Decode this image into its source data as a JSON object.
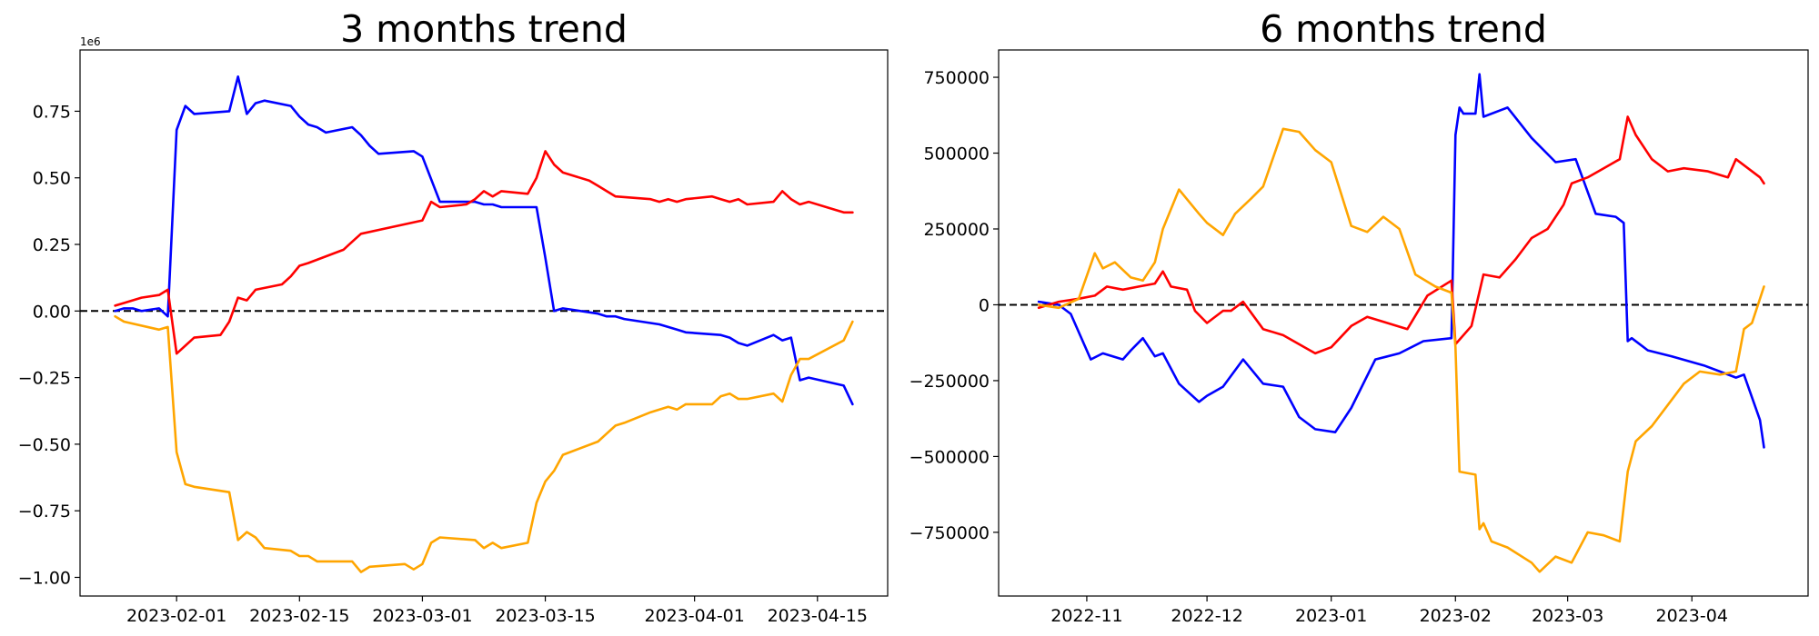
{
  "chart_data": [
    {
      "type": "line",
      "title": "3 months trend",
      "xlabel": "",
      "ylabel": "",
      "y_offset_label": "1e6",
      "xlim": [
        "2023-01-21",
        "2023-04-23"
      ],
      "ylim": [
        -1.07,
        0.98
      ],
      "x_tick_labels": [
        "2023-02-01",
        "2023-02-15",
        "2023-03-01",
        "2023-03-15",
        "2023-04-01",
        "2023-04-15"
      ],
      "y_ticks": [
        0.75,
        0.5,
        0.25,
        0.0,
        -0.25,
        -0.5,
        -0.75,
        -1.0
      ],
      "y_tick_labels": [
        "0.75",
        "0.50",
        "0.25",
        "0.00",
        "−0.25",
        "−0.50",
        "−0.75",
        "−1.00"
      ],
      "zero_line": true,
      "legend": "none",
      "grid": false,
      "series": [
        {
          "color": "#0000ff",
          "x": [
            "2023-01-25",
            "2023-01-26",
            "2023-01-27",
            "2023-01-28",
            "2023-01-30",
            "2023-01-31",
            "2023-02-01",
            "2023-02-02",
            "2023-02-03",
            "2023-02-07",
            "2023-02-08",
            "2023-02-09",
            "2023-02-10",
            "2023-02-11",
            "2023-02-14",
            "2023-02-15",
            "2023-02-16",
            "2023-02-17",
            "2023-02-18",
            "2023-02-21",
            "2023-02-22",
            "2023-02-23",
            "2023-02-24",
            "2023-02-28",
            "2023-03-01",
            "2023-03-03",
            "2023-03-07",
            "2023-03-08",
            "2023-03-09",
            "2023-03-10",
            "2023-03-14",
            "2023-03-15",
            "2023-03-16",
            "2023-03-17",
            "2023-03-21",
            "2023-03-22",
            "2023-03-23",
            "2023-03-24",
            "2023-03-28",
            "2023-03-29",
            "2023-03-30",
            "2023-03-31",
            "2023-04-04",
            "2023-04-05",
            "2023-04-06",
            "2023-04-07",
            "2023-04-10",
            "2023-04-11",
            "2023-04-12",
            "2023-04-13",
            "2023-04-14",
            "2023-04-18",
            "2023-04-19"
          ],
          "values": [
            0.0,
            0.01,
            0.01,
            0.0,
            0.01,
            -0.02,
            0.68,
            0.77,
            0.74,
            0.75,
            0.88,
            0.74,
            0.78,
            0.79,
            0.77,
            0.73,
            0.7,
            0.69,
            0.67,
            0.69,
            0.66,
            0.62,
            0.59,
            0.6,
            0.58,
            0.41,
            0.41,
            0.4,
            0.4,
            0.39,
            0.39,
            0.2,
            0.0,
            0.01,
            -0.01,
            -0.02,
            -0.02,
            -0.03,
            -0.05,
            -0.06,
            -0.07,
            -0.08,
            -0.09,
            -0.1,
            -0.12,
            -0.13,
            -0.09,
            -0.11,
            -0.1,
            -0.26,
            -0.25,
            -0.28,
            -0.35
          ]
        },
        {
          "color": "#ff0000",
          "x": [
            "2023-01-25",
            "2023-01-26",
            "2023-01-28",
            "2023-01-30",
            "2023-01-31",
            "2023-02-01",
            "2023-02-03",
            "2023-02-06",
            "2023-02-07",
            "2023-02-08",
            "2023-02-09",
            "2023-02-10",
            "2023-02-13",
            "2023-02-14",
            "2023-02-15",
            "2023-02-16",
            "2023-02-20",
            "2023-02-21",
            "2023-02-22",
            "2023-03-01",
            "2023-03-02",
            "2023-03-03",
            "2023-03-06",
            "2023-03-07",
            "2023-03-08",
            "2023-03-09",
            "2023-03-10",
            "2023-03-13",
            "2023-03-14",
            "2023-03-15",
            "2023-03-16",
            "2023-03-17",
            "2023-03-20",
            "2023-03-21",
            "2023-03-22",
            "2023-03-23",
            "2023-03-27",
            "2023-03-28",
            "2023-03-29",
            "2023-03-30",
            "2023-03-31",
            "2023-04-03",
            "2023-04-04",
            "2023-04-05",
            "2023-04-06",
            "2023-04-07",
            "2023-04-10",
            "2023-04-11",
            "2023-04-12",
            "2023-04-13",
            "2023-04-14",
            "2023-04-17",
            "2023-04-18",
            "2023-04-19"
          ],
          "values": [
            0.02,
            0.03,
            0.05,
            0.06,
            0.08,
            -0.16,
            -0.1,
            -0.09,
            -0.04,
            0.05,
            0.04,
            0.08,
            0.1,
            0.13,
            0.17,
            0.18,
            0.23,
            0.26,
            0.29,
            0.34,
            0.41,
            0.39,
            0.4,
            0.42,
            0.45,
            0.43,
            0.45,
            0.44,
            0.5,
            0.6,
            0.55,
            0.52,
            0.49,
            0.47,
            0.45,
            0.43,
            0.42,
            0.41,
            0.42,
            0.41,
            0.42,
            0.43,
            0.42,
            0.41,
            0.42,
            0.4,
            0.41,
            0.45,
            0.42,
            0.4,
            0.41,
            0.38,
            0.37,
            0.37
          ]
        },
        {
          "color": "#ffa500",
          "x": [
            "2023-01-25",
            "2023-01-26",
            "2023-01-30",
            "2023-01-31",
            "2023-02-01",
            "2023-02-02",
            "2023-02-03",
            "2023-02-07",
            "2023-02-08",
            "2023-02-09",
            "2023-02-10",
            "2023-02-11",
            "2023-02-14",
            "2023-02-15",
            "2023-02-16",
            "2023-02-17",
            "2023-02-18",
            "2023-02-21",
            "2023-02-22",
            "2023-02-23",
            "2023-02-27",
            "2023-02-28",
            "2023-03-01",
            "2023-03-02",
            "2023-03-03",
            "2023-03-07",
            "2023-03-08",
            "2023-03-09",
            "2023-03-10",
            "2023-03-13",
            "2023-03-14",
            "2023-03-15",
            "2023-03-16",
            "2023-03-17",
            "2023-03-21",
            "2023-03-22",
            "2023-03-23",
            "2023-03-24",
            "2023-03-27",
            "2023-03-28",
            "2023-03-29",
            "2023-03-30",
            "2023-03-31",
            "2023-04-03",
            "2023-04-04",
            "2023-04-05",
            "2023-04-06",
            "2023-04-07",
            "2023-04-10",
            "2023-04-11",
            "2023-04-12",
            "2023-04-13",
            "2023-04-14",
            "2023-04-18",
            "2023-04-19"
          ],
          "values": [
            -0.02,
            -0.04,
            -0.07,
            -0.06,
            -0.53,
            -0.65,
            -0.66,
            -0.68,
            -0.86,
            -0.83,
            -0.85,
            -0.89,
            -0.9,
            -0.92,
            -0.92,
            -0.94,
            -0.94,
            -0.94,
            -0.98,
            -0.96,
            -0.95,
            -0.97,
            -0.95,
            -0.87,
            -0.85,
            -0.86,
            -0.89,
            -0.87,
            -0.89,
            -0.87,
            -0.72,
            -0.64,
            -0.6,
            -0.54,
            -0.49,
            -0.46,
            -0.43,
            -0.42,
            -0.38,
            -0.37,
            -0.36,
            -0.37,
            -0.35,
            -0.35,
            -0.32,
            -0.31,
            -0.33,
            -0.33,
            -0.31,
            -0.34,
            -0.24,
            -0.18,
            -0.18,
            -0.11,
            -0.04
          ]
        }
      ]
    },
    {
      "type": "line",
      "title": "6 months trend",
      "xlabel": "",
      "ylabel": "",
      "xlim": [
        "2022-10-10",
        "2023-04-30"
      ],
      "ylim": [
        -960000,
        840000
      ],
      "x_tick_labels": [
        "2022-11",
        "2022-12",
        "2023-01",
        "2023-02",
        "2023-03",
        "2023-04"
      ],
      "y_ticks": [
        750000,
        500000,
        250000,
        0,
        -250000,
        -500000,
        -750000
      ],
      "y_tick_labels": [
        "750000",
        "500000",
        "250000",
        "0",
        "−250000",
        "−500000",
        "−750000"
      ],
      "zero_line": true,
      "legend": "none",
      "grid": false,
      "series": [
        {
          "color": "#0000ff",
          "x": [
            "2022-10-20",
            "2022-10-25",
            "2022-10-28",
            "2022-11-02",
            "2022-11-05",
            "2022-11-10",
            "2022-11-12",
            "2022-11-15",
            "2022-11-18",
            "2022-11-20",
            "2022-11-24",
            "2022-11-29",
            "2022-12-01",
            "2022-12-05",
            "2022-12-10",
            "2022-12-15",
            "2022-12-20",
            "2022-12-24",
            "2022-12-28",
            "2023-01-02",
            "2023-01-06",
            "2023-01-12",
            "2023-01-18",
            "2023-01-24",
            "2023-01-31",
            "2023-02-01",
            "2023-02-02",
            "2023-02-03",
            "2023-02-06",
            "2023-02-07",
            "2023-02-08",
            "2023-02-14",
            "2023-02-20",
            "2023-02-26",
            "2023-03-03",
            "2023-03-08",
            "2023-03-13",
            "2023-03-15",
            "2023-03-16",
            "2023-03-17",
            "2023-03-21",
            "2023-03-27",
            "2023-04-04",
            "2023-04-08",
            "2023-04-12",
            "2023-04-14",
            "2023-04-18",
            "2023-04-19"
          ],
          "values": [
            10000,
            0,
            -30000,
            -180000,
            -160000,
            -180000,
            -150000,
            -110000,
            -170000,
            -160000,
            -260000,
            -320000,
            -300000,
            -270000,
            -180000,
            -260000,
            -270000,
            -370000,
            -410000,
            -420000,
            -340000,
            -180000,
            -160000,
            -120000,
            -110000,
            560000,
            650000,
            630000,
            630000,
            760000,
            620000,
            650000,
            550000,
            470000,
            480000,
            300000,
            290000,
            270000,
            -120000,
            -110000,
            -150000,
            -170000,
            -200000,
            -220000,
            -240000,
            -230000,
            -380000,
            -470000
          ]
        },
        {
          "color": "#ff0000",
          "x": [
            "2022-10-20",
            "2022-10-25",
            "2022-10-30",
            "2022-11-03",
            "2022-11-06",
            "2022-11-10",
            "2022-11-14",
            "2022-11-18",
            "2022-11-20",
            "2022-11-22",
            "2022-11-26",
            "2022-11-28",
            "2022-12-01",
            "2022-12-05",
            "2022-12-07",
            "2022-12-10",
            "2022-12-15",
            "2022-12-20",
            "2022-12-24",
            "2022-12-28",
            "2023-01-01",
            "2023-01-06",
            "2023-01-10",
            "2023-01-15",
            "2023-01-20",
            "2023-01-25",
            "2023-01-31",
            "2023-02-01",
            "2023-02-05",
            "2023-02-08",
            "2023-02-12",
            "2023-02-16",
            "2023-02-20",
            "2023-02-24",
            "2023-02-28",
            "2023-03-02",
            "2023-03-06",
            "2023-03-10",
            "2023-03-14",
            "2023-03-16",
            "2023-03-18",
            "2023-03-22",
            "2023-03-26",
            "2023-03-30",
            "2023-04-05",
            "2023-04-10",
            "2023-04-12",
            "2023-04-18",
            "2023-04-19"
          ],
          "values": [
            -10000,
            10000,
            20000,
            30000,
            60000,
            50000,
            60000,
            70000,
            110000,
            60000,
            50000,
            -20000,
            -60000,
            -20000,
            -20000,
            10000,
            -80000,
            -100000,
            -130000,
            -160000,
            -140000,
            -70000,
            -40000,
            -60000,
            -80000,
            30000,
            80000,
            -130000,
            -70000,
            100000,
            90000,
            150000,
            220000,
            250000,
            330000,
            400000,
            420000,
            450000,
            480000,
            620000,
            560000,
            480000,
            440000,
            450000,
            440000,
            420000,
            480000,
            420000,
            400000
          ]
        },
        {
          "color": "#ffa500",
          "x": [
            "2022-10-20",
            "2022-10-25",
            "2022-10-30",
            "2022-11-03",
            "2022-11-05",
            "2022-11-08",
            "2022-11-12",
            "2022-11-15",
            "2022-11-18",
            "2022-11-20",
            "2022-11-24",
            "2022-11-29",
            "2022-12-01",
            "2022-12-05",
            "2022-12-08",
            "2022-12-12",
            "2022-12-15",
            "2022-12-20",
            "2022-12-24",
            "2022-12-28",
            "2023-01-01",
            "2023-01-06",
            "2023-01-10",
            "2023-01-14",
            "2023-01-18",
            "2023-01-22",
            "2023-01-27",
            "2023-01-31",
            "2023-02-01",
            "2023-02-02",
            "2023-02-06",
            "2023-02-07",
            "2023-02-08",
            "2023-02-10",
            "2023-02-14",
            "2023-02-20",
            "2023-02-22",
            "2023-02-26",
            "2023-03-02",
            "2023-03-06",
            "2023-03-10",
            "2023-03-14",
            "2023-03-16",
            "2023-03-18",
            "2023-03-22",
            "2023-03-26",
            "2023-03-30",
            "2023-04-03",
            "2023-04-08",
            "2023-04-12",
            "2023-04-14",
            "2023-04-16",
            "2023-04-19"
          ],
          "values": [
            0,
            -10000,
            20000,
            170000,
            120000,
            140000,
            90000,
            80000,
            140000,
            250000,
            380000,
            300000,
            270000,
            230000,
            300000,
            350000,
            390000,
            580000,
            570000,
            510000,
            470000,
            260000,
            240000,
            290000,
            250000,
            100000,
            60000,
            40000,
            -140000,
            -550000,
            -560000,
            -740000,
            -720000,
            -780000,
            -800000,
            -850000,
            -880000,
            -830000,
            -850000,
            -750000,
            -760000,
            -780000,
            -550000,
            -450000,
            -400000,
            -330000,
            -260000,
            -220000,
            -230000,
            -220000,
            -80000,
            -60000,
            60000
          ]
        }
      ]
    }
  ]
}
